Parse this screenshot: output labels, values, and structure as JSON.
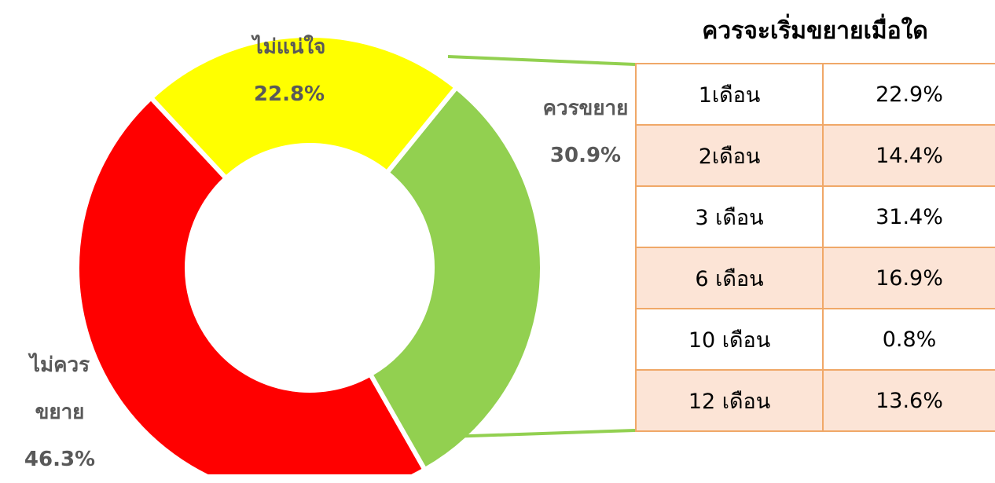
{
  "chart_data": {
    "type": "doughnut",
    "categories": [
      "ไม่แน่ใจ",
      "ควรขยาย",
      "ไม่ควรขยาย"
    ],
    "values": [
      22.8,
      30.9,
      46.3
    ],
    "value_labels": [
      "22.8%",
      "30.9%",
      "46.3%"
    ],
    "colors": [
      "#ffff00",
      "#92d050",
      "#ff0000"
    ]
  },
  "table": {
    "title": "ควรจะเริ่มขยายเมื่อใด",
    "rows": [
      [
        "1เดือน",
        "22.9%"
      ],
      [
        "2เดือน",
        "14.4%"
      ],
      [
        "3 เดือน",
        "31.4%"
      ],
      [
        "6 เดือน",
        "16.9%"
      ],
      [
        "10 เดือน",
        "0.8%"
      ],
      [
        "12 เดือน",
        "13.6%"
      ]
    ]
  }
}
